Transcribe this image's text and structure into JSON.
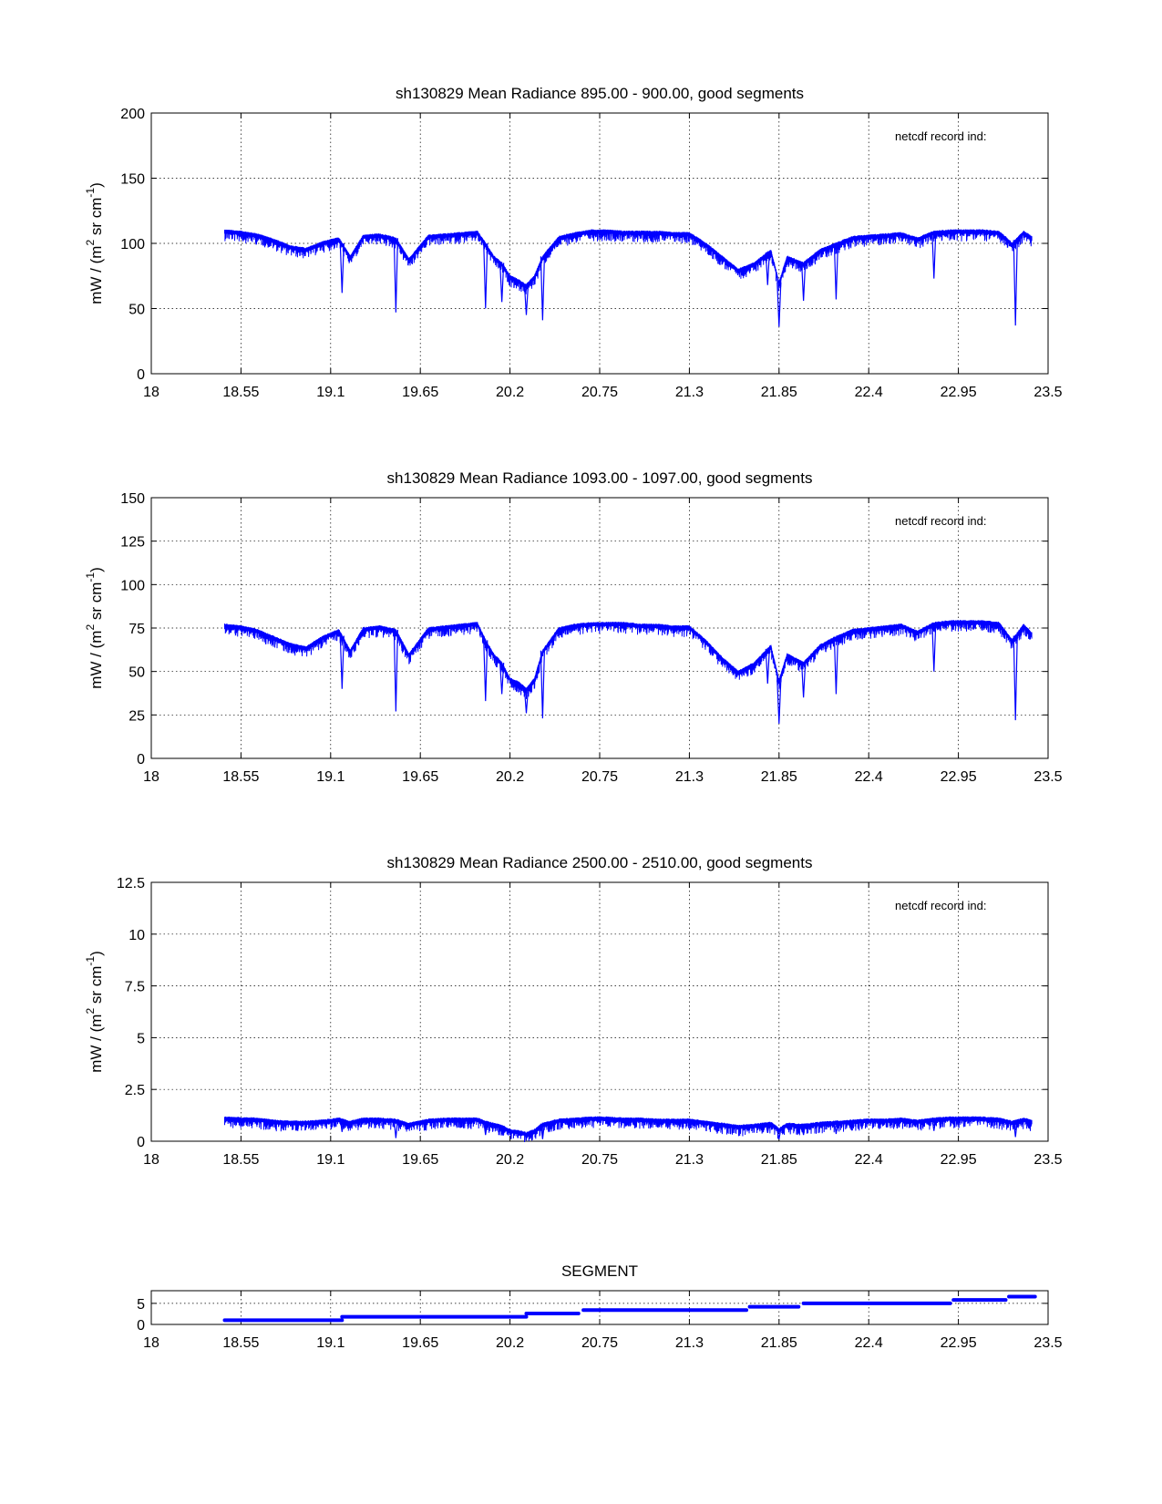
{
  "chart_data": [
    {
      "type": "line",
      "title": "sh130829 Mean Radiance 895.00 - 900.00, good segments",
      "ylabel_parts": [
        "mW / (m",
        "2",
        " sr cm",
        "-1",
        ")"
      ],
      "annotation": "netcdf record ind:",
      "xlim": [
        18,
        23.5
      ],
      "ylim": [
        0,
        200
      ],
      "xticks": [
        18,
        18.55,
        19.1,
        19.65,
        20.2,
        20.75,
        21.3,
        21.85,
        22.4,
        22.95,
        23.5
      ],
      "xtick_labels": [
        "18",
        "18.55",
        "19.1",
        "19.65",
        "20.2",
        "20.75",
        "21.3",
        "21.85",
        "22.4",
        "22.95",
        "23.5"
      ],
      "yticks": [
        0,
        50,
        100,
        150,
        200
      ],
      "ytick_labels": [
        "0",
        "50",
        "100",
        "150",
        "200"
      ],
      "grid": true,
      "series": [
        {
          "name": "mean radiance",
          "color": "#0000ff",
          "x": [
            18.45,
            18.55,
            18.65,
            18.75,
            18.85,
            18.95,
            19.05,
            19.15,
            19.22,
            19.3,
            19.4,
            19.5,
            19.58,
            19.7,
            19.8,
            19.9,
            20.0,
            20.05,
            20.1,
            20.15,
            20.2,
            20.25,
            20.3,
            20.35,
            20.4,
            20.5,
            20.6,
            20.7,
            20.8,
            20.9,
            21.0,
            21.1,
            21.2,
            21.3,
            21.4,
            21.5,
            21.6,
            21.7,
            21.8,
            21.85,
            21.9,
            22.0,
            22.1,
            22.2,
            22.3,
            22.4,
            22.5,
            22.6,
            22.7,
            22.8,
            22.9,
            23.0,
            23.1,
            23.2,
            23.28,
            23.35,
            23.4
          ],
          "y": [
            110,
            109,
            107,
            103,
            98,
            96,
            101,
            104,
            90,
            106,
            107,
            104,
            88,
            106,
            107,
            108,
            109,
            100,
            90,
            85,
            75,
            72,
            68,
            75,
            90,
            105,
            108,
            110,
            110,
            109,
            109,
            109,
            108,
            108,
            100,
            90,
            80,
            85,
            95,
            70,
            90,
            85,
            95,
            100,
            105,
            106,
            107,
            108,
            104,
            109,
            110,
            110,
            110,
            109,
            100,
            109,
            105
          ],
          "dips": [
            [
              19.17,
              62
            ],
            [
              19.5,
              47
            ],
            [
              20.05,
              50
            ],
            [
              20.15,
              55
            ],
            [
              20.3,
              45
            ],
            [
              20.4,
              41
            ],
            [
              21.78,
              68
            ],
            [
              21.85,
              36
            ],
            [
              22.0,
              56
            ],
            [
              22.2,
              57
            ],
            [
              22.8,
              73
            ],
            [
              23.3,
              37
            ]
          ]
        }
      ]
    },
    {
      "type": "line",
      "title": "sh130829 Mean Radiance 1093.00 - 1097.00, good segments",
      "ylabel_parts": [
        "mW / (m",
        "2",
        " sr cm",
        "-1",
        ")"
      ],
      "annotation": "netcdf record ind:",
      "xlim": [
        18,
        23.5
      ],
      "ylim": [
        0,
        150
      ],
      "xticks": [
        18,
        18.55,
        19.1,
        19.65,
        20.2,
        20.75,
        21.3,
        21.85,
        22.4,
        22.95,
        23.5
      ],
      "xtick_labels": [
        "18",
        "18.55",
        "19.1",
        "19.65",
        "20.2",
        "20.75",
        "21.3",
        "21.85",
        "22.4",
        "22.95",
        "23.5"
      ],
      "yticks": [
        0,
        25,
        50,
        75,
        100,
        125,
        150
      ],
      "ytick_labels": [
        "0",
        "25",
        "50",
        "75",
        "100",
        "125",
        "150"
      ],
      "grid": true,
      "series": [
        {
          "name": "mean radiance",
          "color": "#0000ff",
          "x": [
            18.45,
            18.55,
            18.65,
            18.75,
            18.85,
            18.95,
            19.05,
            19.15,
            19.22,
            19.3,
            19.4,
            19.5,
            19.58,
            19.7,
            19.8,
            19.9,
            20.0,
            20.05,
            20.1,
            20.15,
            20.2,
            20.25,
            20.3,
            20.35,
            20.4,
            20.5,
            20.6,
            20.7,
            20.8,
            20.9,
            21.0,
            21.1,
            21.2,
            21.3,
            21.4,
            21.5,
            21.6,
            21.7,
            21.8,
            21.85,
            21.9,
            22.0,
            22.1,
            22.2,
            22.3,
            22.4,
            22.5,
            22.6,
            22.7,
            22.8,
            22.9,
            23.0,
            23.1,
            23.2,
            23.28,
            23.35,
            23.4
          ],
          "y": [
            77,
            76,
            74,
            70,
            66,
            64,
            70,
            74,
            62,
            75,
            76,
            74,
            60,
            75,
            76,
            77,
            78,
            68,
            60,
            55,
            46,
            44,
            40,
            46,
            62,
            75,
            77,
            78,
            78,
            78,
            77,
            77,
            76,
            76,
            68,
            58,
            50,
            55,
            65,
            45,
            60,
            55,
            65,
            70,
            74,
            75,
            76,
            77,
            73,
            78,
            79,
            79,
            79,
            78,
            68,
            77,
            72
          ],
          "dips": [
            [
              19.17,
              40
            ],
            [
              19.5,
              27
            ],
            [
              20.05,
              33
            ],
            [
              20.15,
              37
            ],
            [
              20.3,
              26
            ],
            [
              20.4,
              23
            ],
            [
              21.78,
              43
            ],
            [
              21.85,
              20
            ],
            [
              22.0,
              35
            ],
            [
              22.2,
              37
            ],
            [
              22.8,
              50
            ],
            [
              23.3,
              22
            ]
          ]
        }
      ]
    },
    {
      "type": "line",
      "title": "sh130829 Mean Radiance 2500.00 - 2510.00, good segments",
      "ylabel_parts": [
        "mW / (m",
        "2",
        " sr cm",
        "-1",
        ")"
      ],
      "annotation": "netcdf record ind:",
      "xlim": [
        18,
        23.5
      ],
      "ylim": [
        0,
        12.5
      ],
      "xticks": [
        18,
        18.55,
        19.1,
        19.65,
        20.2,
        20.75,
        21.3,
        21.85,
        22.4,
        22.95,
        23.5
      ],
      "xtick_labels": [
        "18",
        "18.55",
        "19.1",
        "19.65",
        "20.2",
        "20.75",
        "21.3",
        "21.85",
        "22.4",
        "22.95",
        "23.5"
      ],
      "yticks": [
        0,
        2.5,
        5,
        7.5,
        10,
        12.5
      ],
      "ytick_labels": [
        "0",
        "2.5",
        "5",
        "7.5",
        "10",
        "12.5"
      ],
      "grid": true,
      "series": [
        {
          "name": "mean radiance",
          "color": "#0000ff",
          "x": [
            18.45,
            18.55,
            18.65,
            18.75,
            18.85,
            18.95,
            19.05,
            19.15,
            19.22,
            19.3,
            19.4,
            19.5,
            19.58,
            19.7,
            19.8,
            19.9,
            20.0,
            20.05,
            20.1,
            20.15,
            20.2,
            20.25,
            20.3,
            20.35,
            20.4,
            20.5,
            20.6,
            20.7,
            20.8,
            20.9,
            21.0,
            21.1,
            21.2,
            21.3,
            21.4,
            21.5,
            21.6,
            21.7,
            21.8,
            21.85,
            21.9,
            22.0,
            22.1,
            22.2,
            22.3,
            22.4,
            22.5,
            22.6,
            22.7,
            22.8,
            22.9,
            23.0,
            23.1,
            23.2,
            23.28,
            23.35,
            23.4
          ],
          "y": [
            1.15,
            1.12,
            1.1,
            1.0,
            0.95,
            0.95,
            1.0,
            1.1,
            0.95,
            1.1,
            1.1,
            1.05,
            0.85,
            1.05,
            1.1,
            1.1,
            1.1,
            0.95,
            0.85,
            0.75,
            0.55,
            0.5,
            0.4,
            0.55,
            0.85,
            1.05,
            1.1,
            1.15,
            1.15,
            1.1,
            1.1,
            1.05,
            1.05,
            1.05,
            0.95,
            0.85,
            0.75,
            0.8,
            0.9,
            0.6,
            0.85,
            0.8,
            0.9,
            0.95,
            1.0,
            1.05,
            1.05,
            1.1,
            1.0,
            1.1,
            1.15,
            1.15,
            1.15,
            1.1,
            0.95,
            1.1,
            1.0
          ],
          "dips": [
            [
              19.17,
              0.45
            ],
            [
              19.5,
              0.15
            ],
            [
              20.05,
              0.3
            ],
            [
              20.15,
              0.35
            ],
            [
              20.3,
              0.15
            ],
            [
              20.4,
              0.1
            ],
            [
              21.78,
              0.4
            ],
            [
              21.85,
              0.1
            ],
            [
              22.0,
              0.3
            ],
            [
              22.2,
              0.35
            ],
            [
              22.8,
              0.5
            ],
            [
              23.3,
              0.2
            ]
          ]
        }
      ]
    },
    {
      "type": "line",
      "title": "SEGMENT",
      "xlim": [
        18,
        23.5
      ],
      "ylim": [
        0,
        8
      ],
      "xticks": [
        18,
        18.55,
        19.1,
        19.65,
        20.2,
        20.75,
        21.3,
        21.85,
        22.4,
        22.95,
        23.5
      ],
      "xtick_labels": [
        "18",
        "18.55",
        "19.1",
        "19.65",
        "20.2",
        "20.75",
        "21.3",
        "21.85",
        "22.4",
        "22.95",
        "23.5"
      ],
      "yticks": [
        0,
        5
      ],
      "ytick_labels": [
        "0",
        "5"
      ],
      "grid": true,
      "segments": [
        {
          "segment": 1,
          "x_start": 18.45,
          "x_end": 19.17
        },
        {
          "segment": 2,
          "x_start": 19.17,
          "x_end": 20.3
        },
        {
          "segment": 3,
          "x_start": 20.3,
          "x_end": 20.62
        },
        {
          "segment": 4,
          "x_start": 20.65,
          "x_end": 21.65
        },
        {
          "segment": 5,
          "x_start": 21.67,
          "x_end": 21.97
        },
        {
          "segment": 6,
          "x_start": 22.0,
          "x_end": 22.9
        },
        {
          "segment": 7,
          "x_start": 22.92,
          "x_end": 23.24
        },
        {
          "segment": 8,
          "x_start": 23.26,
          "x_end": 23.42
        }
      ],
      "series_color": "#0000ff"
    }
  ]
}
